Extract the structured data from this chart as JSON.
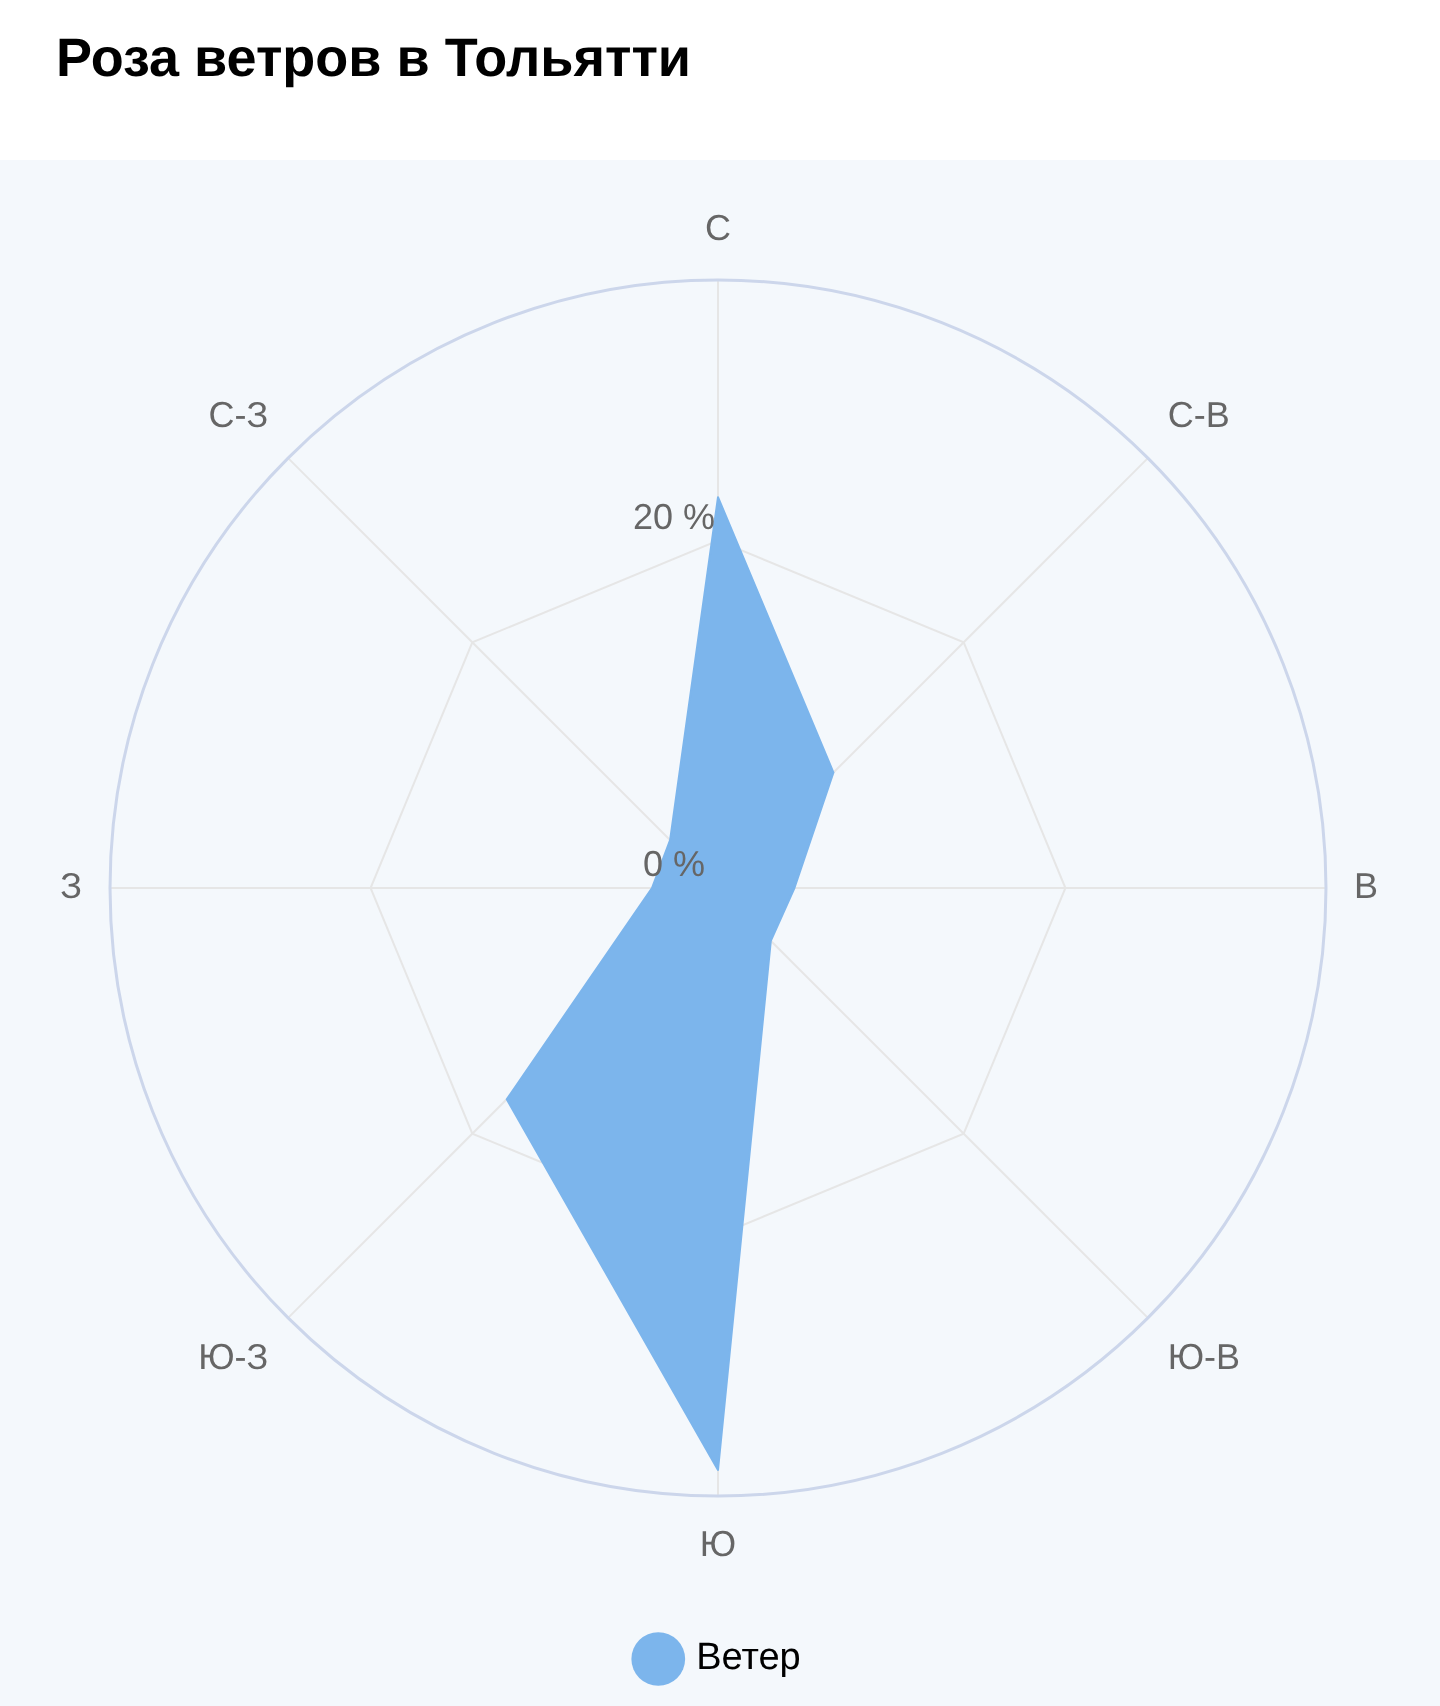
{
  "chart_data": {
    "type": "radar",
    "title": "Роза ветров в Тольятти",
    "categories": [
      "С",
      "С-В",
      "В",
      "Ю-В",
      "Ю",
      "Ю-З",
      "З",
      "С-З"
    ],
    "series": [
      {
        "name": "Ветер",
        "color": "#7cb5ec",
        "values": [
          22.5,
          9.4,
          4.4,
          4.3,
          33.5,
          17.2,
          3.8,
          3.9
        ]
      }
    ],
    "ylim": [
      0,
      35
    ],
    "yticks": [
      {
        "value": 0,
        "label": "0 %"
      },
      {
        "value": 20,
        "label": "20 %"
      }
    ],
    "grid": true,
    "legend": "bottom"
  }
}
